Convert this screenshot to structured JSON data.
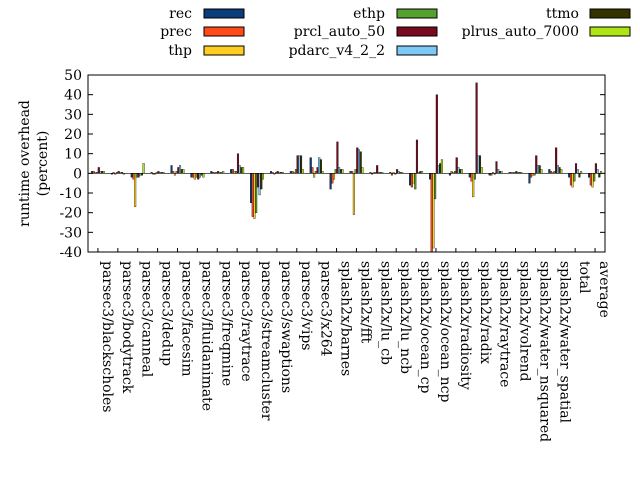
{
  "chart_data": {
    "type": "bar",
    "ylabel": "runtime overhead\n(percent)",
    "ylim": [
      -40,
      50
    ],
    "yticks": [
      -40,
      -30,
      -20,
      -10,
      0,
      10,
      20,
      30,
      40,
      50
    ],
    "grid": false,
    "legend_position": "top",
    "categories": [
      "parsec3/blackscholes",
      "parsec3/bodytrack",
      "parsec3/canneal",
      "parsec3/dedup",
      "parsec3/facesim",
      "parsec3/fluidanimate",
      "parsec3/freqmine",
      "parsec3/raytrace",
      "parsec3/streamcluster",
      "parsec3/swaptions",
      "parsec3/vips",
      "parsec3/x264",
      "splash2x/barnes",
      "splash2x/fft",
      "splash2x/lu_cb",
      "splash2x/lu_ncb",
      "splash2x/ocean_cp",
      "splash2x/ocean_ncp",
      "splash2x/radiosity",
      "splash2x/radix",
      "splash2x/raytrace",
      "splash2x/volrend",
      "splash2x/water_nsquared",
      "splash2x/water_spatial",
      "total",
      "average"
    ],
    "series": [
      {
        "name": "rec",
        "color": "#0b3d7a",
        "values": [
          1,
          -0.5,
          -2,
          0.5,
          4,
          -2,
          1,
          2,
          -15,
          1,
          1,
          8,
          -8,
          1,
          0.5,
          0.5,
          -6,
          -3,
          -1,
          -2,
          -1,
          0.5,
          -5,
          2,
          -2,
          -2
        ]
      },
      {
        "name": "prec",
        "color": "#ff4a1a",
        "values": [
          1,
          0.5,
          -3,
          -0.5,
          1,
          -2,
          0.5,
          2,
          -22,
          0.5,
          1,
          3,
          -5,
          1,
          -0.5,
          -1,
          -7,
          -40,
          1,
          -4,
          -1,
          0.5,
          -2,
          1,
          -6,
          -6
        ]
      },
      {
        "name": "thp",
        "color": "#ffcc22",
        "values": [
          0.5,
          -0.5,
          -17,
          -0.5,
          -1,
          -3,
          0.5,
          1,
          -23,
          -0.5,
          0.5,
          -2,
          -3,
          -21,
          0.5,
          0.5,
          -5,
          -38,
          0.5,
          -12,
          0.5,
          0.5,
          -1,
          0.5,
          -7,
          -7
        ]
      },
      {
        "name": "ethp",
        "color": "#55a12e",
        "values": [
          0.5,
          0.5,
          -2,
          0.5,
          1,
          -2,
          0.5,
          1,
          -20,
          0.5,
          2,
          1,
          2,
          2,
          0.5,
          -0.5,
          -8,
          -13,
          1,
          -3,
          -0.5,
          0.5,
          -1,
          1,
          -4,
          -4
        ]
      },
      {
        "name": "prcl_auto_50",
        "color": "#7a0a1e",
        "values": [
          3,
          1,
          -2,
          1,
          3,
          -3,
          1,
          10,
          -7,
          1,
          9,
          3,
          16,
          13,
          4,
          2,
          17,
          40,
          8,
          46,
          6,
          1,
          9,
          13,
          5,
          5
        ]
      },
      {
        "name": "pdarc_v4_2_2",
        "color": "#7ec8f5",
        "values": [
          1,
          0.5,
          -1,
          0.5,
          4,
          -2,
          0.5,
          4,
          -11,
          0.5,
          9,
          8,
          3,
          12,
          0.5,
          1,
          0.5,
          4,
          3,
          9,
          2,
          0.5,
          4,
          4,
          2,
          2
        ]
      },
      {
        "name": "ttmo",
        "color": "#333300",
        "values": [
          1,
          0.5,
          -1,
          0.5,
          2,
          -1,
          0.5,
          3,
          -8,
          0.5,
          9,
          7,
          2,
          11,
          0.5,
          0.5,
          1,
          5,
          2,
          9,
          1,
          0.5,
          4,
          3,
          -2,
          -2
        ]
      },
      {
        "name": "plrus_auto_7000",
        "color": "#aee615",
        "values": [
          1,
          -0.5,
          5,
          0.5,
          2,
          -2,
          1,
          3,
          -3,
          0.5,
          2,
          1,
          2,
          3,
          0.5,
          0.5,
          1,
          7,
          2,
          3,
          1,
          0.5,
          2,
          2,
          1,
          1
        ]
      }
    ]
  }
}
